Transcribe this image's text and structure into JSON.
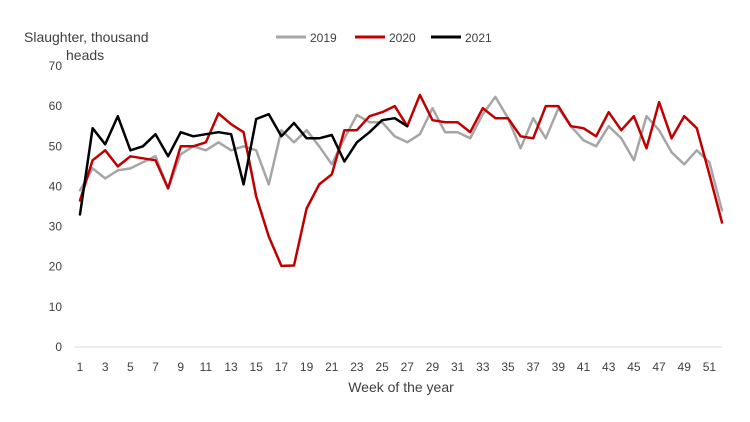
{
  "chart_data": {
    "type": "line",
    "title": "",
    "ylabel_line1": "Slaughter, thousand",
    "ylabel_line2": "heads",
    "xlabel": "Week of the year",
    "ylim": [
      0,
      70
    ],
    "yticks": [
      0,
      10,
      20,
      30,
      40,
      50,
      60,
      70
    ],
    "xlim": [
      1,
      52
    ],
    "xticks": [
      1,
      3,
      5,
      7,
      9,
      11,
      13,
      15,
      17,
      19,
      21,
      23,
      25,
      27,
      29,
      31,
      33,
      35,
      37,
      39,
      41,
      43,
      45,
      47,
      49,
      51
    ],
    "grid": false,
    "legend_position": "top",
    "series": [
      {
        "name": "2019",
        "color": "#a6a6a6",
        "x": [
          1,
          2,
          3,
          4,
          5,
          6,
          7,
          8,
          9,
          10,
          11,
          12,
          13,
          14,
          15,
          16,
          17,
          18,
          19,
          20,
          21,
          22,
          23,
          24,
          25,
          26,
          27,
          28,
          29,
          30,
          31,
          32,
          33,
          34,
          35,
          36,
          37,
          38,
          39,
          40,
          41,
          42,
          43,
          44,
          45,
          46,
          47,
          48,
          49,
          50,
          51,
          52
        ],
        "values": [
          39,
          44.5,
          42,
          44,
          44.5,
          46,
          47.5,
          39.5,
          48,
          50,
          49,
          51,
          49,
          50,
          49,
          40.5,
          54,
          51,
          54,
          50,
          45.5,
          52,
          57.8,
          56,
          56,
          52.5,
          51,
          53,
          59.5,
          53.5,
          53.5,
          52,
          58,
          62.3,
          57,
          49.5,
          57,
          52,
          59.5,
          55,
          51.5,
          50,
          55,
          52,
          46.5,
          57.5,
          54,
          48.5,
          45.5,
          49,
          46,
          34
        ]
      },
      {
        "name": "2020",
        "color": "#c00000",
        "x": [
          1,
          2,
          3,
          4,
          5,
          6,
          7,
          8,
          9,
          10,
          11,
          12,
          13,
          14,
          15,
          16,
          17,
          18,
          19,
          20,
          21,
          22,
          23,
          24,
          25,
          26,
          27,
          28,
          29,
          30,
          31,
          32,
          33,
          34,
          35,
          36,
          37,
          38,
          39,
          40,
          41,
          42,
          43,
          44,
          45,
          46,
          47,
          48,
          49,
          50,
          51,
          52
        ],
        "values": [
          36.5,
          46.5,
          49,
          45,
          47.5,
          47,
          46.5,
          39.5,
          50,
          50,
          51,
          58.2,
          55.5,
          53.5,
          37.5,
          27.5,
          20.2,
          20.3,
          34.5,
          40.5,
          43,
          54,
          54,
          57.5,
          58.5,
          60,
          55,
          62.8,
          56.5,
          56,
          56,
          53.5,
          59.5,
          57,
          57,
          52.5,
          52,
          60,
          60,
          55,
          54.5,
          52.5,
          58.5,
          54,
          57.5,
          49.5,
          61,
          52,
          57.5,
          54.5,
          43,
          31
        ]
      },
      {
        "name": "2021",
        "color": "#000000",
        "x": [
          1,
          2,
          3,
          4,
          5,
          6,
          7,
          8,
          9,
          10,
          11,
          12,
          13,
          14,
          15,
          16,
          17,
          18,
          19,
          20,
          21,
          22,
          23,
          24,
          25,
          26,
          27
        ],
        "values": [
          33,
          54.5,
          50.5,
          57.5,
          49,
          50,
          53,
          47.5,
          53.5,
          52.5,
          53,
          53.5,
          53,
          40.5,
          56.8,
          58,
          52.5,
          55.8,
          52,
          52,
          52.8,
          46.2,
          51,
          53.5,
          56.5,
          57,
          55
        ]
      }
    ]
  }
}
